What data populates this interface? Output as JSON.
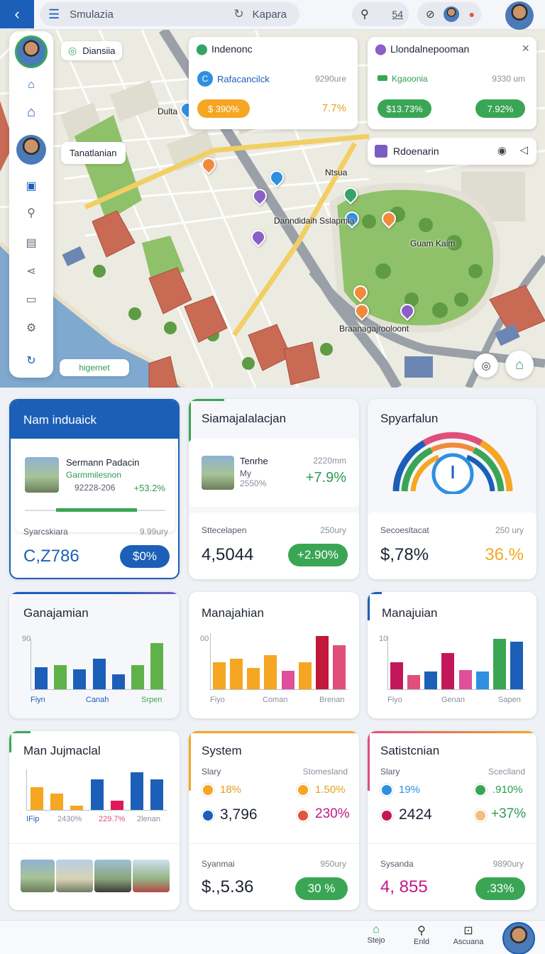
{
  "topbar": {
    "app_title": "Smulazia",
    "location": "Kapara",
    "search_count": "54"
  },
  "map": {
    "user_label": "Diansiia",
    "card1": {
      "title": "Indenonc",
      "row_label": "Rafacancilck",
      "row_value": "9290ure",
      "badge": "$ 390%",
      "stat": "7.7%"
    },
    "card2": {
      "title": "Llondalnepooman",
      "row_label": "Kgaoonia",
      "row_value": "9330 um",
      "badge_left": "$13.73%",
      "badge_right": "7.92%"
    },
    "card3": {
      "title": "Rdoenarin"
    },
    "labels": {
      "tag_left": "Tanatlanian",
      "place1": "Dulta",
      "place2": "Ntsua",
      "place3": "Danndidaih Sslapmia",
      "place4": "Guam Kaim",
      "place5": "Braanagajrooloont",
      "button": "higernet"
    },
    "colors": {
      "water": "#7fa9cf",
      "park": "#8fc16a",
      "road": "#f2cf63",
      "roof": "#c96a55"
    }
  },
  "sidebar": {
    "icons": [
      "home-outline-icon",
      "home-icon",
      "calendar-icon",
      "search-icon",
      "building-icon",
      "share-icon",
      "folder-icon",
      "gear-icon",
      "refresh-icon"
    ]
  },
  "panels": {
    "p1": {
      "title": "Nam induaick",
      "person_name": "Sermann Padacin",
      "person_sub": "Garmmilesnon",
      "person_code": "92228-206",
      "person_stat": "+53.2%",
      "progress": 0.6,
      "metric_label": "Syarcskiara",
      "metric_unit": "9.99ury",
      "metric_value": "C,Z786",
      "metric_badge": "$0%"
    },
    "p2": {
      "title": "Siamajalalacjan",
      "person_name": "Tenrhe",
      "person_sub": "My",
      "person_code": "2550%",
      "person_right": "2220mm",
      "person_stat": "+7.9%",
      "metric_label": "Sttecelapen",
      "metric_unit": "250ury",
      "metric_value": "4,5044",
      "metric_badge": "+2.90%"
    },
    "p3": {
      "title": "Spyarfalun",
      "metric_label": "Secoesltacat",
      "metric_unit": "250 ury",
      "metric_value": "$,78%",
      "metric_stat": "36.%"
    },
    "c1": {
      "title": "Ganajamian",
      "ymax": "90",
      "xl": [
        "Fiyn",
        "Canah",
        "Srpen"
      ],
      "values": [
        0.47,
        0.5,
        0.42,
        0.64,
        0.32,
        0.5,
        0.97
      ]
    },
    "c2": {
      "title": "Manajahian",
      "ymax": "00",
      "xl": [
        "Fiyo",
        "Coman",
        "Brenan"
      ],
      "values": [
        0.5,
        0.57,
        0.4,
        0.64,
        0.34,
        0.5,
        1.0,
        0.83
      ]
    },
    "c3": {
      "title": "Manajuian",
      "ymax": "10",
      "xl": [
        "Fiyo",
        "Genan",
        "Sapen"
      ],
      "values": [
        0.53,
        0.28,
        0.35,
        0.72,
        0.38,
        0.35,
        1.0,
        0.95
      ]
    },
    "c4": {
      "title": "Man Jujmaclal",
      "xl": [
        "IFip",
        "2430%",
        "229.7%",
        "2lenan"
      ],
      "values": [
        0.6,
        0.43,
        0.12,
        0.82,
        0.24,
        1.0,
        0.82
      ]
    },
    "s1": {
      "title": "System",
      "col1": "Slary",
      "col2": "Stomesland",
      "r1a": "18%",
      "r1b": "1.50%",
      "r2a": "3,796",
      "r2b": "230%"
    },
    "s2": {
      "title": "Satistcnian",
      "col1": "Slary",
      "col2": "Sceclland",
      "r1a": "19%",
      "r1b": ".910%",
      "r2a": "2424",
      "r2b": "+37%"
    },
    "b2": {
      "label": "Syanmai",
      "unit": "950ury",
      "value": "$.,5.36",
      "badge": "30 %"
    },
    "b3": {
      "label": "Sysanda",
      "unit": "9890ury",
      "value": "4, 855",
      "badge": ".33%"
    }
  },
  "bottom_nav": [
    {
      "label": "Stejo",
      "icon": "chat-icon"
    },
    {
      "label": "Enld",
      "icon": "search-icon"
    },
    {
      "label": "Ascuana",
      "icon": "lock-icon"
    }
  ]
}
